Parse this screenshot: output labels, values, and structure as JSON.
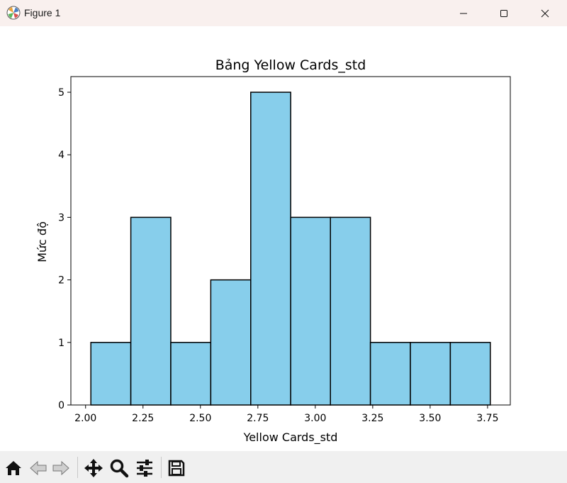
{
  "window": {
    "title": "Figure 1",
    "icons": {
      "app": "matplotlib-icon",
      "minimize": "minimize-icon",
      "maximize": "maximize-icon",
      "close": "close-icon"
    }
  },
  "toolbar": {
    "buttons": [
      {
        "name": "home-button",
        "icon": "home-icon"
      },
      {
        "name": "back-button",
        "icon": "arrow-left-icon"
      },
      {
        "name": "forward-button",
        "icon": "arrow-right-icon"
      },
      {
        "name": "pan-button",
        "icon": "move-icon"
      },
      {
        "name": "zoom-button",
        "icon": "magnifier-icon"
      },
      {
        "name": "configure-subplots-button",
        "icon": "sliders-icon"
      },
      {
        "name": "save-button",
        "icon": "floppy-disk-icon"
      }
    ]
  },
  "chart_data": {
    "type": "histogram",
    "title": "Bảng Yellow Cards_std",
    "xlabel": "Yellow Cards_std",
    "ylabel": "Mức độ",
    "bin_edges": [
      2.023,
      2.197,
      2.371,
      2.545,
      2.719,
      2.893,
      3.066,
      3.24,
      3.414,
      3.588,
      3.762
    ],
    "counts": [
      1,
      3,
      1,
      2,
      5,
      3,
      3,
      1,
      1,
      1
    ],
    "xlim": [
      1.936,
      3.849
    ],
    "ylim": [
      0,
      5.25
    ],
    "xticks": [
      2.0,
      2.25,
      2.5,
      2.75,
      3.0,
      3.25,
      3.5,
      3.75
    ],
    "xtick_labels": [
      "2.00",
      "2.25",
      "2.50",
      "2.75",
      "3.00",
      "3.25",
      "3.50",
      "3.75"
    ],
    "yticks": [
      0,
      1,
      2,
      3,
      4,
      5
    ],
    "ytick_labels": [
      "0",
      "1",
      "2",
      "3",
      "4",
      "5"
    ],
    "bar_color": "#87ceeb",
    "edge_color": "#000000",
    "grid": false
  }
}
